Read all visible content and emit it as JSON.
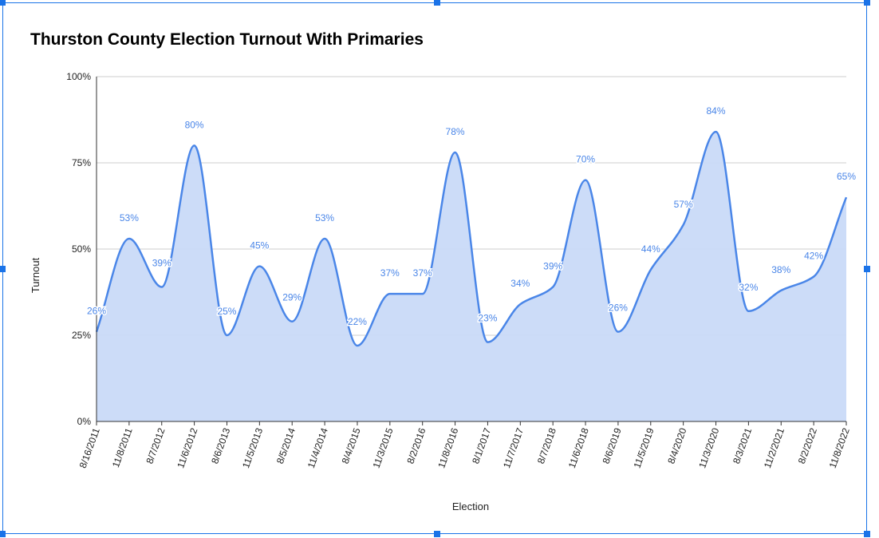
{
  "chart_data": {
    "type": "area",
    "title": "Thurston County Election Turnout With Primaries",
    "xlabel": "Election",
    "ylabel": "Turnout",
    "ylim": [
      0,
      100
    ],
    "yticks": [
      "0%",
      "25%",
      "50%",
      "75%",
      "100%"
    ],
    "grid": true,
    "legend": "none",
    "colors": {
      "line": "#4a86e8",
      "fill": "#c9daf8",
      "labels": "#4a86e8"
    },
    "categories": [
      "8/16/2011",
      "11/8/2011",
      "8/7/2012",
      "11/6/2012",
      "8/6/2013",
      "11/5/2013",
      "8/5/2014",
      "11/4/2014",
      "8/4/2015",
      "11/3/2015",
      "8/2/2016",
      "11/8/2016",
      "8/1/2017",
      "11/7/2017",
      "8/7/2018",
      "11/6/2018",
      "8/6/2019",
      "11/5/2019",
      "8/4/2020",
      "11/3/2020",
      "8/3/2021",
      "11/2/2021",
      "8/2/2022",
      "11/8/2022"
    ],
    "values": [
      26,
      53,
      39,
      80,
      25,
      45,
      29,
      53,
      22,
      37,
      37,
      78,
      23,
      34,
      39,
      70,
      26,
      44,
      57,
      84,
      32,
      38,
      42,
      65
    ],
    "labels": [
      "26%",
      "53%",
      "39%",
      "80%",
      "25%",
      "45%",
      "29%",
      "53%",
      "22%",
      "37%",
      "37%",
      "78%",
      "23%",
      "34%",
      "39%",
      "70%",
      "26%",
      "44%",
      "57%",
      "84%",
      "32%",
      "38%",
      "42%",
      "65%"
    ]
  }
}
